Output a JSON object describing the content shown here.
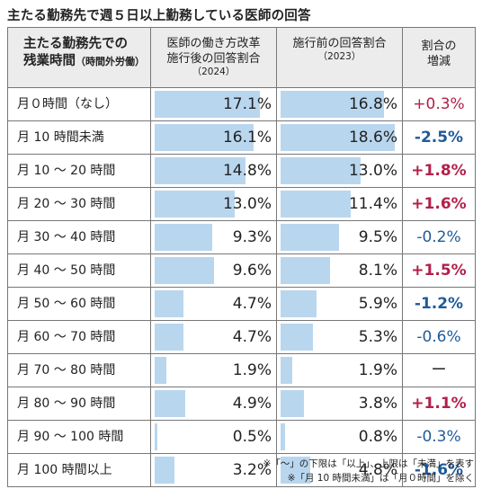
{
  "title": "主たる勤務先で週５日以上勤務している医師の回答",
  "header": {
    "col1_main": "主たる勤務先での",
    "col1_line2": "残業時間",
    "col1_sub": "（時間外労働）",
    "col2_line1": "医師の働き方改革",
    "col2_line2": "施行後の回答割合",
    "col2_year": "（2024）",
    "col3_line1": "施行前の回答割合",
    "col3_year": "（2023）",
    "col4_line1": "割合の",
    "col4_line2": "増減"
  },
  "chart_data": {
    "type": "table",
    "title": "主たる勤務先で週５日以上勤務している医師の回答",
    "categories": [
      "月０時間（なし）",
      "月 10 時間未満",
      "月 10 ～ 20 時間",
      "月 20 ～ 30 時間",
      "月 30 ～ 40 時間",
      "月 40 ～ 50 時間",
      "月 50 ～ 60 時間",
      "月 60 ～ 70 時間",
      "月 70 ～ 80 時間",
      "月 80 ～ 90 時間",
      "月 90 ～ 100 時間",
      "月 100 時間以上"
    ],
    "series": [
      {
        "name": "医師の働き方改革施行後の回答割合（2024）",
        "values": [
          17.1,
          16.1,
          14.8,
          13.0,
          9.3,
          9.6,
          4.7,
          4.7,
          1.9,
          4.9,
          0.5,
          3.2
        ],
        "labels": [
          "17.1%",
          "16.1%",
          "14.8%",
          "13.0%",
          "9.3%",
          "9.6%",
          "4.7%",
          "4.7%",
          "1.9%",
          "4.9%",
          "0.5%",
          "3.2%"
        ]
      },
      {
        "name": "施行前の回答割合（2023）",
        "values": [
          16.8,
          18.6,
          13.0,
          11.4,
          9.5,
          8.1,
          5.9,
          5.3,
          1.9,
          3.8,
          0.8,
          4.8
        ],
        "labels": [
          "16.8%",
          "18.6%",
          "13.0%",
          "11.4%",
          "9.5%",
          "8.1%",
          "5.9%",
          "5.3%",
          "1.9%",
          "3.8%",
          "0.8%",
          "4.8%"
        ]
      }
    ],
    "changes": [
      "+0.3%",
      "-2.5%",
      "+1.8%",
      "+1.6%",
      "-0.2%",
      "+1.5%",
      "-1.2%",
      "-0.6%",
      "ー",
      "+1.1%",
      "-0.3%",
      "-1.6%"
    ],
    "change_bold": [
      false,
      true,
      true,
      true,
      false,
      true,
      true,
      false,
      false,
      true,
      false,
      true
    ],
    "bar_scale_max": 19,
    "colors": {
      "bar": "#b9d6ef",
      "increase": "#b3204a",
      "decrease": "#1f5b9a",
      "header_bg": "#ececec"
    }
  },
  "notes": [
    "※「～」の下限は「以上」、上限は「未満」を表す",
    "※「月 10 時間未満」は「月０時間」を除く"
  ]
}
